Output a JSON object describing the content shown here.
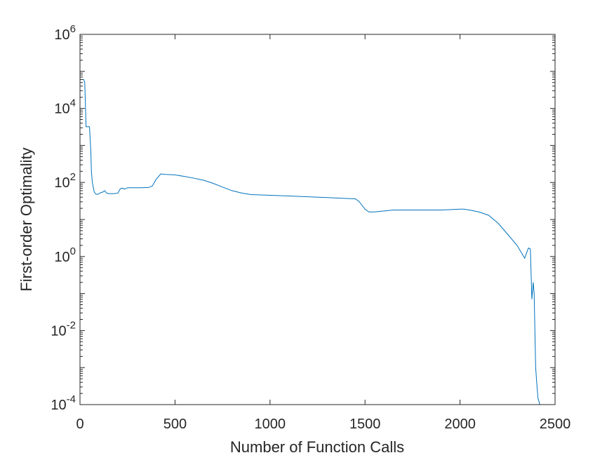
{
  "chart_data": {
    "type": "line",
    "title": "",
    "xlabel": "Number of Function Calls",
    "ylabel": "First-order Optimality",
    "xlim": [
      0,
      2500
    ],
    "ylim": [
      0.0001,
      1000000
    ],
    "yscale": "log",
    "grid": false,
    "xticks": [
      0,
      500,
      1000,
      1500,
      2000,
      2500
    ],
    "xtick_labels": [
      "0",
      "500",
      "1000",
      "1500",
      "2000",
      "2500"
    ],
    "yticks": [
      {
        "value": 0.0001,
        "base": "10",
        "exp": "-4"
      },
      {
        "value": 0.01,
        "base": "10",
        "exp": "-2"
      },
      {
        "value": 1,
        "base": "10",
        "exp": "0"
      },
      {
        "value": 100,
        "base": "10",
        "exp": "2"
      },
      {
        "value": 10000,
        "base": "10",
        "exp": "4"
      },
      {
        "value": 1000000,
        "base": "10",
        "exp": "6"
      }
    ],
    "series": [
      {
        "color": "#0072BD",
        "x": [
          15,
          20,
          25,
          32,
          50,
          57,
          60,
          65,
          75,
          85,
          95,
          105,
          120,
          130,
          140,
          150,
          180,
          200,
          210,
          218,
          225,
          235,
          250,
          280,
          320,
          360,
          380,
          400,
          425,
          450,
          500,
          550,
          600,
          650,
          700,
          750,
          800,
          850,
          900,
          1000,
          1100,
          1200,
          1300,
          1400,
          1450,
          1470,
          1500,
          1520,
          1550,
          1600,
          1650,
          1700,
          1800,
          1900,
          2000,
          2020,
          2050,
          2100,
          2150,
          2200,
          2250,
          2300,
          2340,
          2360,
          2370,
          2378,
          2385,
          2390,
          2395,
          2398,
          2402,
          2410,
          2420
        ],
        "y": [
          60000,
          60000,
          50000,
          3200,
          3200,
          700,
          200,
          100,
          55,
          48,
          48,
          52,
          55,
          60,
          52,
          50,
          50,
          52,
          65,
          70,
          70,
          66,
          72,
          72,
          72,
          73,
          80,
          120,
          170,
          165,
          160,
          145,
          130,
          115,
          95,
          75,
          60,
          52,
          47,
          45,
          43,
          41,
          39,
          37,
          36,
          30,
          19,
          16,
          16,
          17,
          18,
          18,
          18,
          18,
          19,
          19,
          18,
          16,
          13,
          8,
          4,
          2,
          0.9,
          1.7,
          1.6,
          0.07,
          0.2,
          0.1,
          0.005,
          0.001,
          0.0005,
          0.00015,
          0.0001
        ]
      }
    ]
  }
}
